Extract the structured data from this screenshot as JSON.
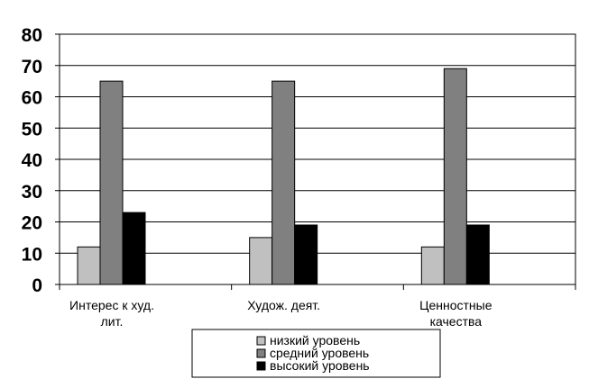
{
  "chart_data": {
    "type": "bar",
    "title": "",
    "xlabel": "",
    "ylabel": "",
    "ylim": [
      0,
      80
    ],
    "yticks": [
      0,
      10,
      20,
      30,
      40,
      50,
      60,
      70,
      80
    ],
    "grid": true,
    "legend_position": "bottom",
    "categories": [
      [
        "Интерес к худ.",
        "лит."
      ],
      [
        "Худож. деят."
      ],
      [
        "Ценностные",
        "качества"
      ]
    ],
    "series": [
      {
        "name": "низкий уровень",
        "color": "#c0c0c0",
        "values": [
          12,
          15,
          12
        ]
      },
      {
        "name": "средний уровень",
        "color": "#808080",
        "values": [
          65,
          65,
          69
        ]
      },
      {
        "name": "высокий уровень",
        "color": "#000000",
        "values": [
          23,
          19,
          19
        ]
      }
    ]
  }
}
